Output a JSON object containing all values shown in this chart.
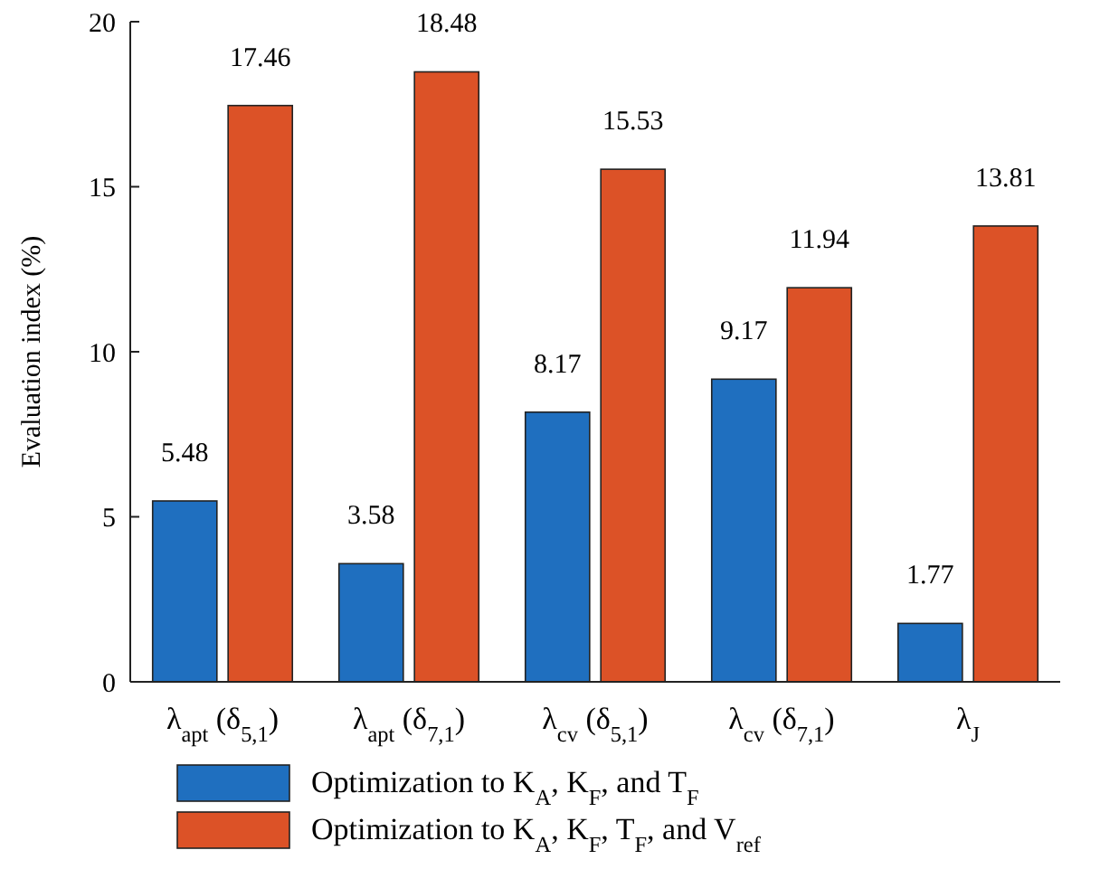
{
  "chart_data": {
    "type": "bar",
    "ylabel": "Evaluation index (%)",
    "categories": [
      "λ$_{apt}$ (δ$_{5,1}$)",
      "λ$_{apt}$ (δ$_{7,1}$)",
      "λ$_{cv}$ (δ$_{5,1}$)",
      "λ$_{cv}$ (δ$_{7,1}$)",
      "λ$_{J}$"
    ],
    "series": [
      {
        "name": "Optimization to K$_{A}$, K$_{F}$, and T$_{F}$",
        "color": "#1f6fbf",
        "values": [
          5.48,
          3.58,
          8.17,
          9.17,
          1.77
        ]
      },
      {
        "name": "Optimization to K$_{A}$, K$_{F}$, T$_{F}$, and V$_{ref}$",
        "color": "#dc5227",
        "values": [
          17.46,
          18.48,
          15.53,
          11.94,
          13.81
        ]
      }
    ],
    "ylim": [
      0,
      20
    ],
    "yticks": [
      0,
      5,
      10,
      15,
      20
    ],
    "data_labels": true,
    "legend": "bottom",
    "grid": false
  }
}
